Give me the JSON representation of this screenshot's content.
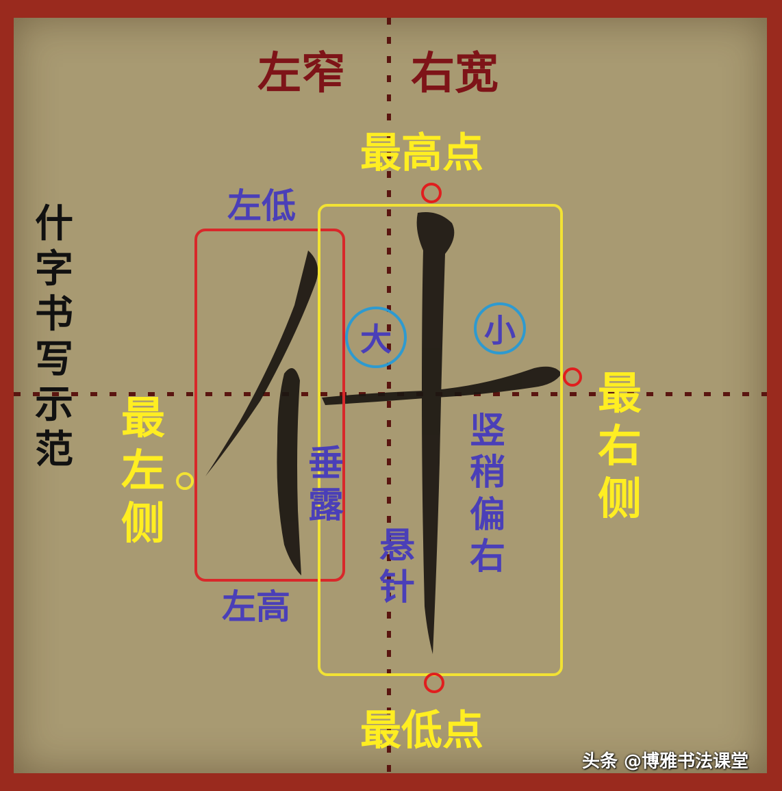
{
  "header": {
    "left": "左窄",
    "right": "右宽"
  },
  "points": {
    "top": "最高点",
    "bottom": "最低点",
    "left": "最左侧",
    "right": "最右侧"
  },
  "left_box": {
    "top": "左低",
    "bottom": "左高",
    "stroke": "垂露"
  },
  "right_box": {
    "center_stroke": "悬针",
    "note": "竖稍偏右"
  },
  "circles": {
    "big": "大",
    "small": "小"
  },
  "side_title": "什字书写示范",
  "watermark": "头条 @博雅书法课堂",
  "colors": {
    "frame": "#9a2a1e",
    "paper": "#a89a72",
    "left_box": "#d8282a",
    "right_box": "#f2e234",
    "circle": "#2e9ad0"
  }
}
